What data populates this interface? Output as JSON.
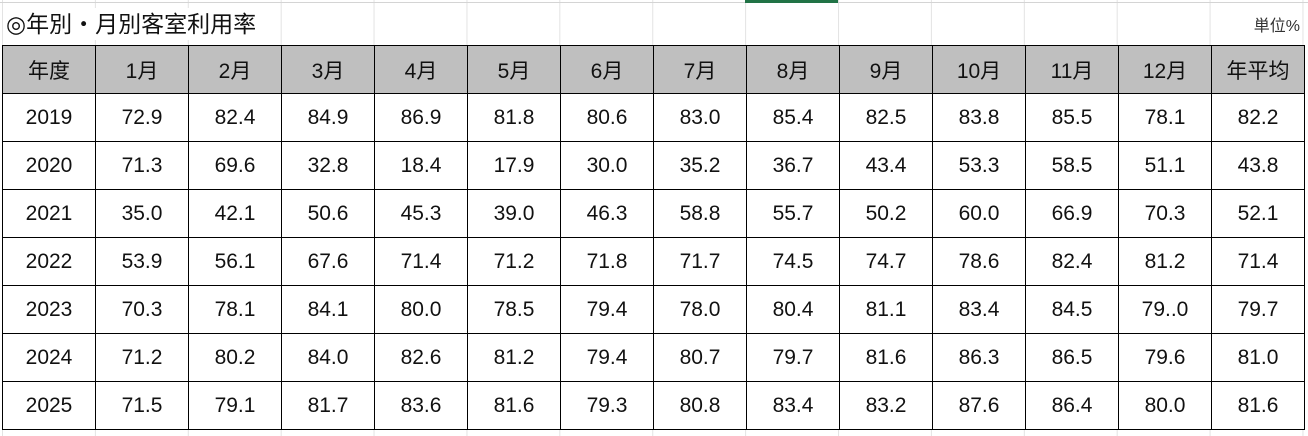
{
  "title": "◎年別・月別客室利用率",
  "unit": "単位%",
  "colors": {
    "header_bg": "#bfbfbf",
    "selected_column_marker": "#217346"
  },
  "headers": [
    "年度",
    "1月",
    "2月",
    "3月",
    "4月",
    "5月",
    "6月",
    "7月",
    "8月",
    "9月",
    "10月",
    "11月",
    "12月",
    "年平均"
  ],
  "rows": [
    [
      "2019",
      "72.9",
      "82.4",
      "84.9",
      "86.9",
      "81.8",
      "80.6",
      "83.0",
      "85.4",
      "82.5",
      "83.8",
      "85.5",
      "78.1",
      "82.2"
    ],
    [
      "2020",
      "71.3",
      "69.6",
      "32.8",
      "18.4",
      "17.9",
      "30.0",
      "35.2",
      "36.7",
      "43.4",
      "53.3",
      "58.5",
      "51.1",
      "43.8"
    ],
    [
      "2021",
      "35.0",
      "42.1",
      "50.6",
      "45.3",
      "39.0",
      "46.3",
      "58.8",
      "55.7",
      "50.2",
      "60.0",
      "66.9",
      "70.3",
      "52.1"
    ],
    [
      "2022",
      "53.9",
      "56.1",
      "67.6",
      "71.4",
      "71.2",
      "71.8",
      "71.7",
      "74.5",
      "74.7",
      "78.6",
      "82.4",
      "81.2",
      "71.4"
    ],
    [
      "2023",
      "70.3",
      "78.1",
      "84.1",
      "80.0",
      "78.5",
      "79.4",
      "78.0",
      "80.4",
      "81.1",
      "83.4",
      "84.5",
      "79..0",
      "79.7"
    ],
    [
      "2024",
      "71.2",
      "80.2",
      "84.0",
      "82.6",
      "81.2",
      "79.4",
      "80.7",
      "79.7",
      "81.6",
      "86.3",
      "86.5",
      "79.6",
      "81.0"
    ],
    [
      "2025",
      "71.5",
      "79.1",
      "81.7",
      "83.6",
      "81.6",
      "79.3",
      "80.8",
      "83.4",
      "83.2",
      "87.6",
      "86.4",
      "80.0",
      "81.6"
    ]
  ]
}
